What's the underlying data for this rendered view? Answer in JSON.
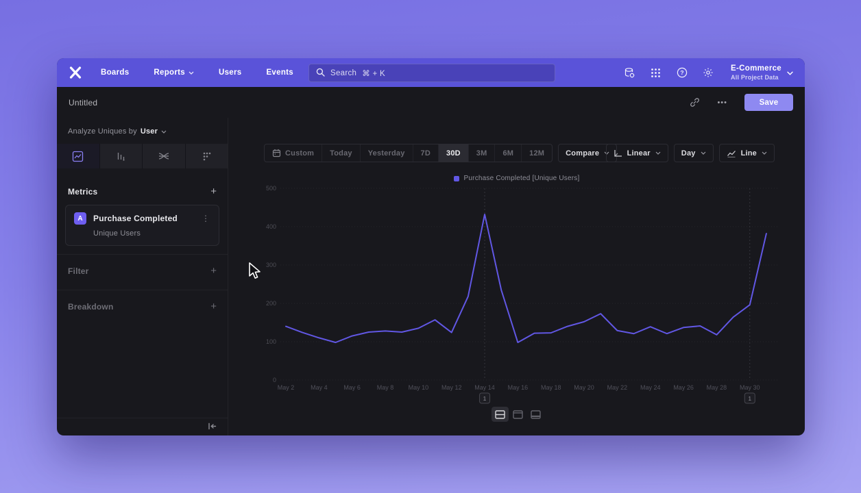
{
  "nav": {
    "items": [
      {
        "label": "Boards",
        "dropdown": false
      },
      {
        "label": "Reports",
        "dropdown": true
      },
      {
        "label": "Users",
        "dropdown": false
      },
      {
        "label": "Events",
        "dropdown": false
      }
    ],
    "search_placeholder": "Search",
    "search_shortcut": "⌘ + K",
    "icons": [
      "data-connections-icon",
      "apps-grid-icon",
      "help-icon",
      "settings-gear-icon"
    ],
    "project_name": "E-Commerce",
    "project_scope": "All Project Data"
  },
  "header": {
    "title": "Untitled",
    "more": "•••",
    "save": "Save"
  },
  "sidebar": {
    "analyze_prefix": "Analyze Uniques by",
    "analyze_value": "User",
    "tabs": [
      "insights-tab",
      "funnels-tab",
      "flows-tab",
      "retention-tab"
    ],
    "active_tab": "insights-tab",
    "metrics_label": "Metrics",
    "add_symbol": "+",
    "metric": {
      "badge": "A",
      "name": "Purchase Completed",
      "subtitle": "Unique Users",
      "menu": "⋮"
    },
    "filter_label": "Filter",
    "breakdown_label": "Breakdown"
  },
  "toolbar": {
    "ranges": [
      "Custom",
      "Today",
      "Yesterday",
      "7D",
      "30D",
      "3M",
      "6M",
      "12M"
    ],
    "active_range": "30D",
    "compare_label": "Compare",
    "scale_label": "Linear",
    "interval_label": "Day",
    "charttype_label": "Line"
  },
  "chart_data": {
    "type": "line",
    "title": "",
    "legend": "Purchase Completed [Unique Users]",
    "legend_position": "top-center",
    "grid": "horizontal-dotted",
    "ylim": [
      0,
      500
    ],
    "yticks": [
      0,
      100,
      200,
      300,
      400,
      500
    ],
    "x_tick_every": 2,
    "x": [
      "May 2",
      "May 3",
      "May 4",
      "May 5",
      "May 6",
      "May 7",
      "May 8",
      "May 9",
      "May 10",
      "May 11",
      "May 12",
      "May 13",
      "May 14",
      "May 15",
      "May 16",
      "May 17",
      "May 18",
      "May 19",
      "May 20",
      "May 21",
      "May 22",
      "May 23",
      "May 24",
      "May 25",
      "May 26",
      "May 27",
      "May 28",
      "May 29",
      "May 30",
      "May 31"
    ],
    "series": [
      {
        "name": "Purchase Completed [Unique Users]",
        "color": "#6157e4",
        "values": [
          140,
          124,
          110,
          98,
          115,
          125,
          128,
          125,
          135,
          157,
          124,
          218,
          432,
          235,
          98,
          122,
          123,
          140,
          152,
          173,
          129,
          121,
          139,
          121,
          137,
          141,
          118,
          164,
          196,
          382
        ]
      }
    ],
    "annotations": [
      {
        "x": "May 14",
        "label": "1"
      },
      {
        "x": "May 30",
        "label": "1"
      }
    ]
  },
  "footer": {
    "layout_options": [
      "split-view",
      "chart-view",
      "table-view"
    ],
    "active_layout": "split-view"
  },
  "colors": {
    "accent_purple": "#6157e4",
    "nav_purple": "#5a53d9",
    "save_button": "#8e89f1",
    "metric_badge": "#6e5ef0",
    "window_bg": "#18181d"
  }
}
